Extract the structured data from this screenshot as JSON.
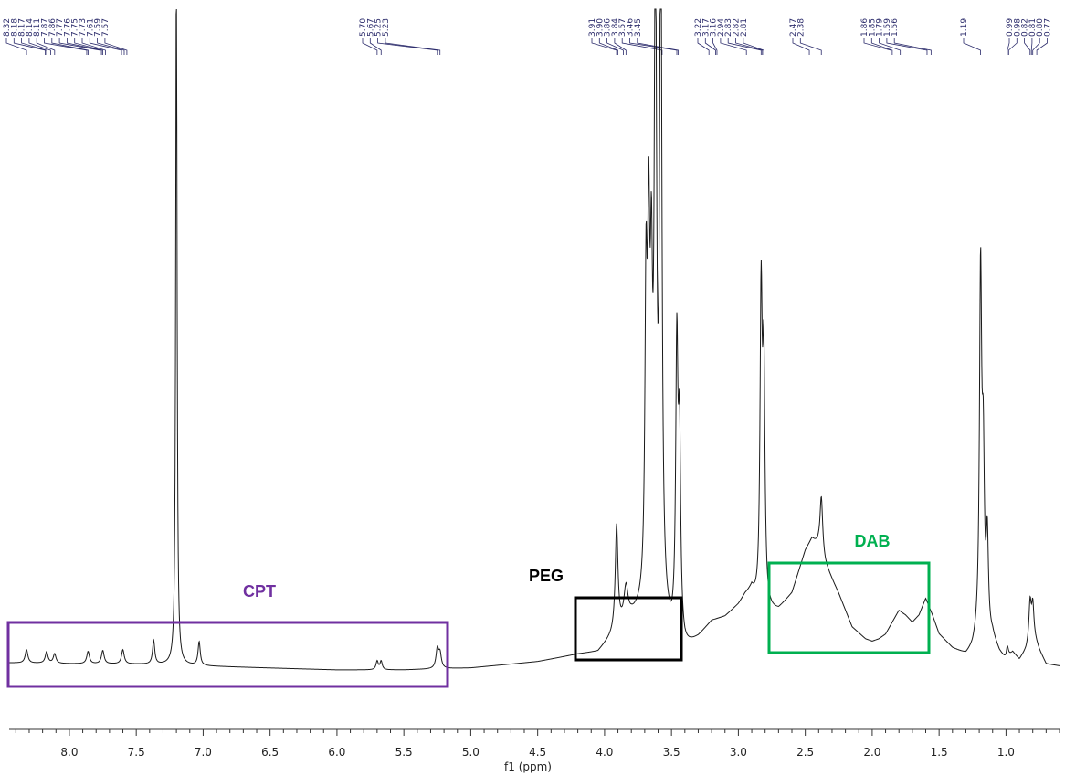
{
  "chart_data": {
    "type": "line",
    "title": "",
    "xlabel": "f1 (ppm)",
    "ylabel": "",
    "xlim": [
      8.45,
      0.6
    ],
    "ylim": [
      0,
      100
    ],
    "x_axis_reversed": true,
    "grid": false,
    "legend": "none",
    "xticks": [
      8.0,
      7.5,
      7.0,
      6.5,
      6.0,
      5.5,
      5.0,
      4.5,
      4.0,
      3.5,
      3.0,
      2.5,
      2.0,
      1.5,
      1.0
    ],
    "xtick_labels": [
      "8.0",
      "7.5",
      "7.0",
      "6.5",
      "6.0",
      "5.5",
      "5.0",
      "4.5",
      "4.0",
      "3.5",
      "3.0",
      "2.5",
      "2.0",
      "1.5",
      "1.0"
    ],
    "peak_labels": [
      "8.32",
      "8.18",
      "8.17",
      "8.14",
      "8.11",
      "7.87",
      "7.86",
      "7.77",
      "7.76",
      "7.75",
      "7.73",
      "7.61",
      "7.59",
      "7.57",
      "5.70",
      "5.67",
      "5.25",
      "5.23",
      "3.91",
      "3.90",
      "3.86",
      "3.84",
      "3.57",
      "3.46",
      "3.45",
      "3.22",
      "3.17",
      "3.16",
      "2.94",
      "2.83",
      "2.82",
      "2.81",
      "2.47",
      "2.38",
      "1.86",
      "1.85",
      "1.79",
      "1.59",
      "1.56",
      "1.19",
      "0.99",
      "0.98",
      "0.82",
      "0.81",
      "0.80",
      "0.77"
    ],
    "baseline_points": [
      [
        8.45,
        1.5
      ],
      [
        8.0,
        1.3
      ],
      [
        7.5,
        1.2
      ],
      [
        7.25,
        1.0
      ],
      [
        7.0,
        0.8
      ],
      [
        6.5,
        0.4
      ],
      [
        6.0,
        0.0
      ],
      [
        5.5,
        0.0
      ],
      [
        5.0,
        0.4
      ],
      [
        4.5,
        1.7
      ],
      [
        4.2,
        3.2
      ],
      [
        4.05,
        3.6
      ],
      [
        3.95,
        6.5
      ],
      [
        3.9,
        8.0
      ],
      [
        3.8,
        10.5
      ],
      [
        3.7,
        11.5
      ],
      [
        3.55,
        9.0
      ],
      [
        3.5,
        6.0
      ],
      [
        3.4,
        4.0
      ],
      [
        3.3,
        6.5
      ],
      [
        3.2,
        10.0
      ],
      [
        3.1,
        11.0
      ],
      [
        3.0,
        13.5
      ],
      [
        2.95,
        15.5
      ],
      [
        2.9,
        16.5
      ],
      [
        2.85,
        12.5
      ],
      [
        2.78,
        12.0
      ],
      [
        2.7,
        12.5
      ],
      [
        2.6,
        16.0
      ],
      [
        2.5,
        25.0
      ],
      [
        2.45,
        27.5
      ],
      [
        2.4,
        26.0
      ],
      [
        2.35,
        22.0
      ],
      [
        2.25,
        16.0
      ],
      [
        2.15,
        9.0
      ],
      [
        2.05,
        6.5
      ],
      [
        2.0,
        6.0
      ],
      [
        1.95,
        6.5
      ],
      [
        1.9,
        7.5
      ],
      [
        1.85,
        10.0
      ],
      [
        1.8,
        12.5
      ],
      [
        1.75,
        11.5
      ],
      [
        1.7,
        10.0
      ],
      [
        1.65,
        11.5
      ],
      [
        1.6,
        15.0
      ],
      [
        1.55,
        11.5
      ],
      [
        1.5,
        7.5
      ],
      [
        1.4,
        4.5
      ],
      [
        1.3,
        3.0
      ],
      [
        1.25,
        4.0
      ],
      [
        1.22,
        5.5
      ],
      [
        1.1,
        6.5
      ],
      [
        1.05,
        3.5
      ],
      [
        1.0,
        1.8
      ],
      [
        0.95,
        3.5
      ],
      [
        0.9,
        2.0
      ],
      [
        0.85,
        4.0
      ],
      [
        0.8,
        7.5
      ],
      [
        0.75,
        4.0
      ],
      [
        0.7,
        1.2
      ],
      [
        0.6,
        0.8
      ]
    ],
    "peaks": [
      {
        "ppm": 8.32,
        "height": 2.8,
        "width": 0.012
      },
      {
        "ppm": 8.17,
        "height": 2.4,
        "width": 0.012
      },
      {
        "ppm": 8.11,
        "height": 2.0,
        "width": 0.012
      },
      {
        "ppm": 7.86,
        "height": 2.6,
        "width": 0.012
      },
      {
        "ppm": 7.75,
        "height": 2.8,
        "width": 0.012
      },
      {
        "ppm": 7.6,
        "height": 3.0,
        "width": 0.012
      },
      {
        "ppm": 7.37,
        "height": 5.0,
        "width": 0.01
      },
      {
        "ppm": 7.2,
        "height": 150.0,
        "width": 0.006
      },
      {
        "ppm": 7.03,
        "height": 5.0,
        "width": 0.01
      },
      {
        "ppm": 5.7,
        "height": 1.8,
        "width": 0.01
      },
      {
        "ppm": 5.67,
        "height": 1.8,
        "width": 0.01
      },
      {
        "ppm": 5.25,
        "height": 4.0,
        "width": 0.012
      },
      {
        "ppm": 5.23,
        "height": 3.0,
        "width": 0.012
      },
      {
        "ppm": 3.91,
        "height": 22.0,
        "width": 0.012
      },
      {
        "ppm": 3.84,
        "height": 7.0,
        "width": 0.018
      },
      {
        "ppm": 3.69,
        "height": 62.0,
        "width": 0.01
      },
      {
        "ppm": 3.67,
        "height": 66.0,
        "width": 0.01
      },
      {
        "ppm": 3.65,
        "height": 56.0,
        "width": 0.01
      },
      {
        "ppm": 3.62,
        "height": 140.0,
        "width": 0.01
      },
      {
        "ppm": 3.58,
        "height": 150.0,
        "width": 0.01
      },
      {
        "ppm": 3.46,
        "height": 60.0,
        "width": 0.01
      },
      {
        "ppm": 3.44,
        "height": 40.0,
        "width": 0.01
      },
      {
        "ppm": 2.83,
        "height": 64.0,
        "width": 0.01
      },
      {
        "ppm": 2.81,
        "height": 48.0,
        "width": 0.01
      },
      {
        "ppm": 2.38,
        "height": 12.0,
        "width": 0.012
      },
      {
        "ppm": 1.19,
        "height": 76.0,
        "width": 0.01
      },
      {
        "ppm": 1.17,
        "height": 34.0,
        "width": 0.01
      },
      {
        "ppm": 1.14,
        "height": 20.0,
        "width": 0.01
      },
      {
        "ppm": 0.82,
        "height": 8.0,
        "width": 0.01
      },
      {
        "ppm": 0.8,
        "height": 6.0,
        "width": 0.01
      },
      {
        "ppm": 0.99,
        "height": 2.5,
        "width": 0.01
      }
    ],
    "annotations": [
      {
        "text": "CPT",
        "color": "#7030a0",
        "range_ppm": [
          8.45,
          5.15
        ]
      },
      {
        "text": "PEG",
        "color": "#000000",
        "range_ppm": [
          4.15,
          3.38
        ]
      },
      {
        "text": "DAB",
        "color": "#00b050",
        "range_ppm": [
          2.68,
          1.52
        ]
      }
    ],
    "colors": {
      "trace": "#1a1a1a",
      "axis": "#333333",
      "peak_labels": "#2b2b6b"
    }
  }
}
